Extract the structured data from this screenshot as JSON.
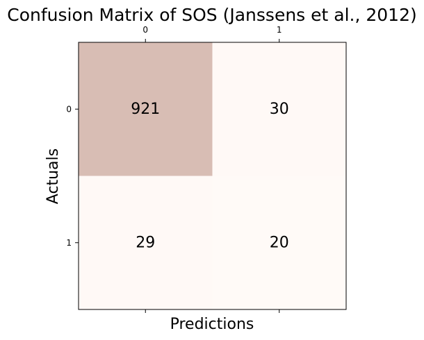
{
  "chart_data": {
    "type": "heatmap",
    "title": "Confusion Matrix of SOS (Janssens et al., 2012)",
    "xlabel": "Predictions",
    "ylabel": "Actuals",
    "x_tick_labels": [
      "0",
      "1"
    ],
    "y_tick_labels": [
      "0",
      "1"
    ],
    "matrix": [
      [
        921,
        30
      ],
      [
        29,
        20
      ]
    ],
    "colors": {
      "low": "#fffaf7",
      "high": "#d8bdb4",
      "axis": "#000000",
      "text": "#000000"
    }
  }
}
